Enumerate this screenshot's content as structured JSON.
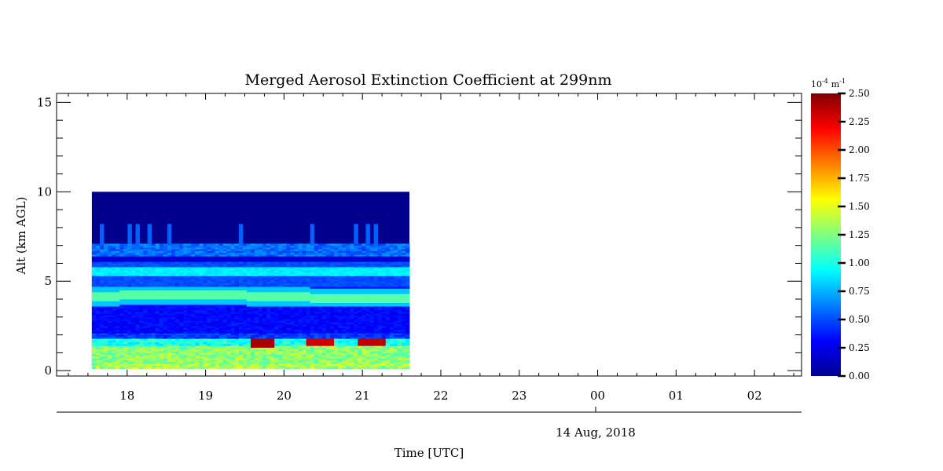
{
  "chart_data": {
    "type": "heatmap",
    "title": "Merged Aerosol Extinction Coefficient at 299nm",
    "xlabel": "Time [UTC]",
    "ylabel": "Alt (km AGL)",
    "date_label": "14 Aug, 2018",
    "x_tick_labels": [
      "18",
      "19",
      "20",
      "21",
      "22",
      "23",
      "00",
      "01",
      "02"
    ],
    "x_range_hours": [
      17.1,
      26.6
    ],
    "y_tick_labels": [
      "0",
      "5",
      "10",
      "15"
    ],
    "y_ticks": [
      0,
      5,
      10,
      15
    ],
    "ylim": [
      -0.3,
      15.5
    ],
    "data_time_range": [
      17.55,
      21.6
    ],
    "data_alt_range": [
      0.1,
      10.0
    ],
    "colorbar": {
      "unit_base": "10",
      "unit_exp": "-4",
      "unit_m": "m",
      "unit_m_exp": "-1",
      "range": [
        0.0,
        2.5
      ],
      "tick_values": [
        0.0,
        0.25,
        0.5,
        0.75,
        1.0,
        1.25,
        1.5,
        1.75,
        2.0,
        2.25,
        2.5
      ],
      "tick_labels": [
        "0.00",
        "0.25",
        "0.50",
        "0.75",
        "1.00",
        "1.25",
        "1.50",
        "1.75",
        "2.00",
        "2.25",
        "2.50"
      ],
      "colormap": "jet"
    },
    "layers": [
      {
        "name_alt_km": 0.1,
        "top_km": 1.8,
        "value": 1.2
      },
      {
        "name_alt_km": 3.8,
        "top_km": 4.6,
        "value": 1.05
      },
      {
        "name_alt_km": 5.0,
        "top_km": 6.0,
        "value": 0.8
      },
      {
        "name_alt_km": 6.3,
        "top_km": 7.2,
        "value": 0.55
      }
    ],
    "hotspots": [
      {
        "t_start": 19.58,
        "t_end": 19.9,
        "alt": 1.55,
        "value": 2.4
      },
      {
        "t_start": 20.3,
        "t_end": 20.62,
        "alt": 1.6,
        "value": 2.3
      },
      {
        "t_start": 20.95,
        "t_end": 21.3,
        "alt": 1.6,
        "value": 2.35
      }
    ],
    "grid": false,
    "legend": "colorbar-right"
  }
}
